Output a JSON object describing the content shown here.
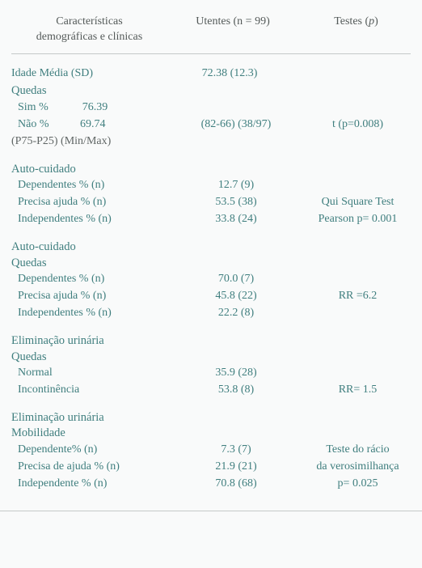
{
  "colors": {
    "background": "#f9fafa",
    "text": "#545a59",
    "teal": "#3f7e7e",
    "rule": "#c4c9c8"
  },
  "font_family": "Georgia serif",
  "header": {
    "col1_line1": "Características",
    "col1_line2": "demográficas e clínicas",
    "col2": "Utentes (n = 99)",
    "col3_prefix": "Testes (",
    "col3_p": "p",
    "col3_suffix": ")"
  },
  "idade": {
    "label": "Idade Média (SD)",
    "value": "72.38 (12.3)"
  },
  "quedas": {
    "title": "Quedas",
    "sim_label": "Sim %",
    "sim_val": "76.39",
    "nao_label": "Não %",
    "nao_val": "69.74",
    "p_line_col1": "(P75-P25) (Min/Max)",
    "p_line_col2": "(82-66) (38/97)",
    "p_line_col3": "t (p=0.008)"
  },
  "auto1": {
    "title": "Auto-cuidado",
    "rows": [
      {
        "label": "Dependentes % (n)",
        "val": "12.7 (9)",
        "test": ""
      },
      {
        "label": "Precisa ajuda  % (n)",
        "val": "53.5 (38)",
        "test": "Qui Square Test"
      },
      {
        "label": "Independentes % (n)",
        "val": "33.8 (24)",
        "test": "Pearson  p= 0.001"
      }
    ]
  },
  "auto2": {
    "title": "Auto-cuidado",
    "subtitle": "Quedas",
    "rows": [
      {
        "label": "Dependentes % (n)",
        "val": "70.0 (7)",
        "test": ""
      },
      {
        "label": "Precisa ajuda  % (n)",
        "val": "45.8 (22)",
        "test": "RR =6.2"
      },
      {
        "label": "Independentes % (n)",
        "val": "22.2 (8)",
        "test": ""
      }
    ]
  },
  "urin1": {
    "title": "Eliminação urinária",
    "subtitle": "Quedas",
    "rows": [
      {
        "label": "Normal",
        "val": "35.9 (28)",
        "test": ""
      },
      {
        "label": "Incontinência",
        "val": "53.8 (8)",
        "test": "RR= 1.5"
      }
    ]
  },
  "urin2": {
    "title": "Eliminação urinária",
    "subtitle": "Mobilidade",
    "rows": [
      {
        "label": "Dependente% (n)",
        "val": "7.3 (7)",
        "test": "Teste do rácio"
      },
      {
        "label": "Precisa de ajuda % (n)",
        "val": "21.9 (21)",
        "test": "da verosimilhança"
      },
      {
        "label": "Independente % (n)",
        "val": "70.8 (68)",
        "test": "p= 0.025"
      }
    ]
  }
}
